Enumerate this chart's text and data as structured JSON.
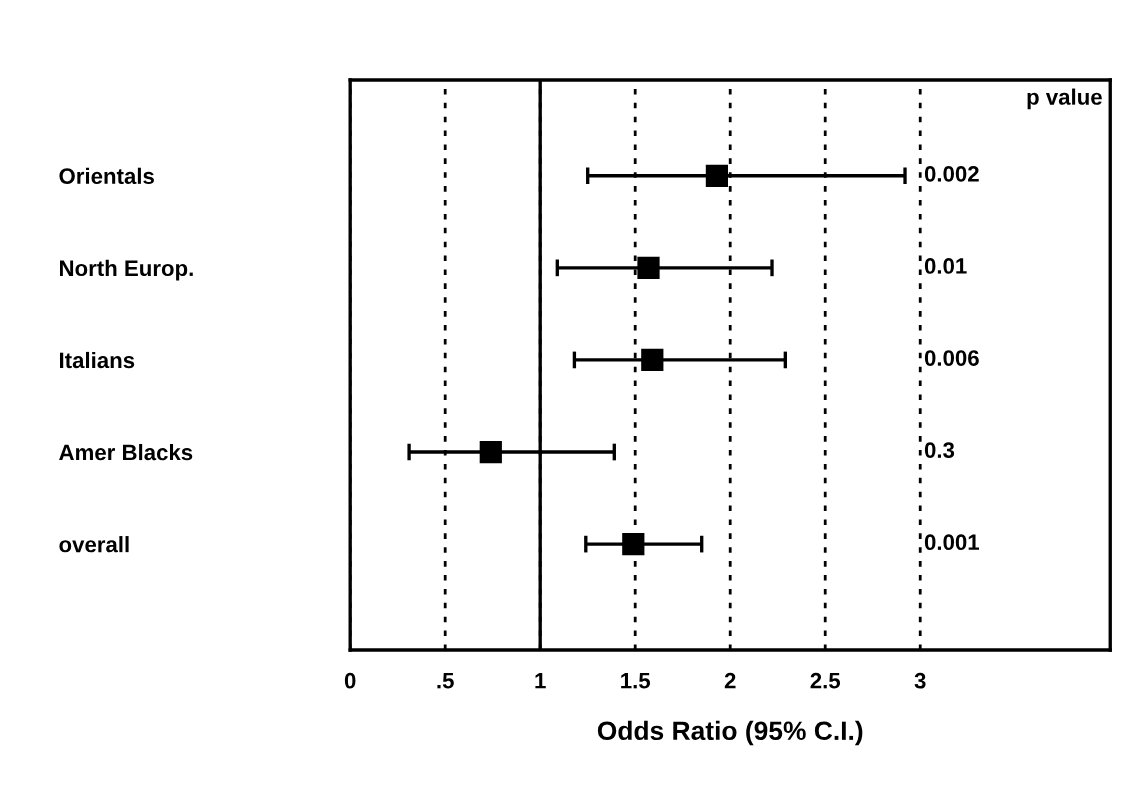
{
  "chart_data": {
    "type": "scatter",
    "orientation": "horizontal",
    "xlabel": "Odds Ratio (95% C.I.)",
    "categories": [
      "Orientals",
      "North Europ.",
      "Italians",
      "Amer Blacks",
      "overall"
    ],
    "series": [
      {
        "color": "#000000",
        "values": [
          1.93,
          1.57,
          1.59,
          0.74,
          1.49
        ],
        "errors": [
          [
            1.25,
            2.92
          ],
          [
            1.09,
            2.22
          ],
          [
            1.18,
            2.29
          ],
          [
            0.31,
            1.39
          ],
          [
            1.24,
            1.85
          ]
        ]
      }
    ],
    "marker": "square",
    "xlim": [
      0,
      4.0
    ],
    "xticks": [
      0,
      {
        "value": 0.5,
        "label": ".5"
      },
      1,
      1.5,
      2,
      2.5,
      3
    ],
    "grid": "x",
    "legend": false,
    "ref_lines": [
      {
        "axis": "x",
        "value": 1,
        "line_style": "solid",
        "color": "#000000"
      }
    ],
    "annotations": [
      "p value",
      "0.002",
      "0.01",
      "0.006",
      "0.3",
      "0.001"
    ]
  }
}
